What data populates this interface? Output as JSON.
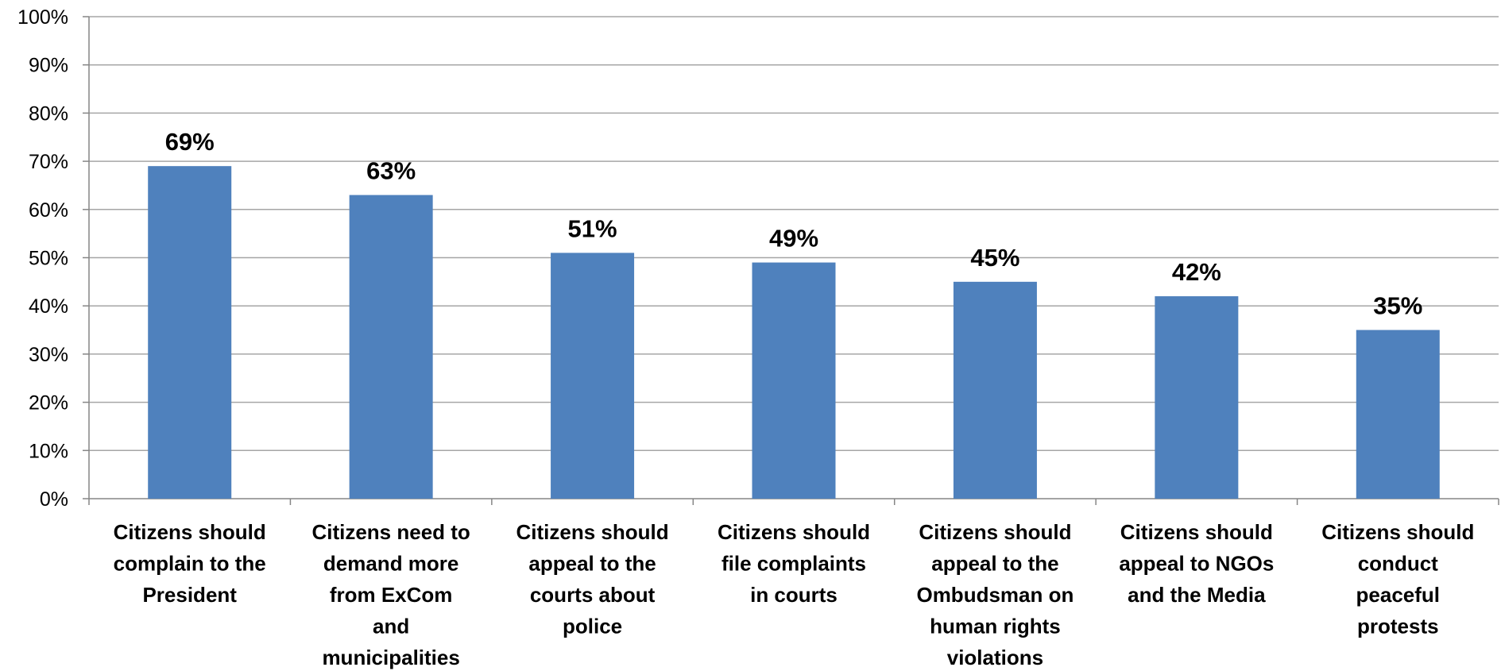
{
  "chart_data": {
    "type": "bar",
    "title": "",
    "xlabel": "",
    "ylabel": "",
    "ylim": [
      0,
      100
    ],
    "yticks": [
      "0%",
      "10%",
      "20%",
      "30%",
      "40%",
      "50%",
      "60%",
      "70%",
      "80%",
      "90%",
      "100%"
    ],
    "grid": true,
    "legend": "none",
    "bar_color": "#4F81BD",
    "categories": [
      [
        "Citizens should",
        "complain to the",
        "President"
      ],
      [
        "Citizens need to",
        "demand more",
        "from ExCom",
        "and",
        "municipalities"
      ],
      [
        "Citizens should",
        "appeal to the",
        "courts about",
        "police"
      ],
      [
        "Citizens should",
        "file complaints",
        "in courts"
      ],
      [
        "Citizens should",
        "appeal to the",
        "Ombudsman on",
        "human rights",
        "violations"
      ],
      [
        "Citizens should",
        "appeal to NGOs",
        "and the Media"
      ],
      [
        "Citizens should",
        "conduct",
        "peaceful",
        "protests"
      ]
    ],
    "values": [
      69,
      63,
      51,
      49,
      45,
      42,
      35
    ],
    "data_labels": [
      "69%",
      "63%",
      "51%",
      "49%",
      "45%",
      "42%",
      "35%"
    ]
  }
}
